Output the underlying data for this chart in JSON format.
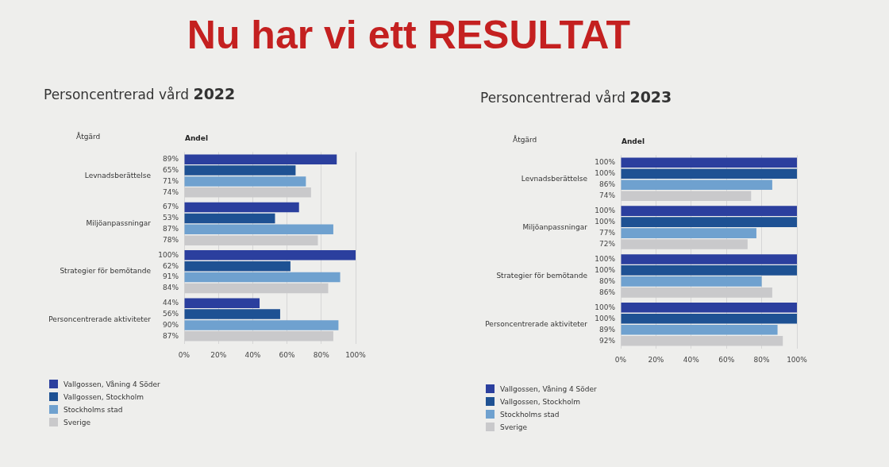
{
  "chart_data": [
    {
      "type": "bar",
      "orientation": "horizontal",
      "title": "Personcentrerad vård 2022",
      "annotations": [
        "Nu har vi ett RESULTAT"
      ],
      "ylabel": "Åtgärd",
      "xlabel": "Andel",
      "categories": [
        "Levnadsberättelse",
        "Miljöanpassningar",
        "Strategier för bemötande",
        "Personcentrerade aktiviteter"
      ],
      "series": [
        {
          "name": "Vallgossen, Våning 4 Söder",
          "color": "#2b3f9e",
          "values": [
            89,
            67,
            100,
            44
          ],
          "value_labels": [
            "89%",
            "67%",
            "100%",
            "44%"
          ]
        },
        {
          "name": "Vallgossen, Stockholm",
          "color": "#1e5193",
          "values": [
            65,
            53,
            62,
            56
          ],
          "value_labels": [
            "65%",
            "53%",
            "62%",
            "56%"
          ]
        },
        {
          "name": "Stockholms stad",
          "color": "#6fa1cf",
          "values": [
            71,
            87,
            91,
            90
          ],
          "value_labels": [
            "71%",
            "87%",
            "91%",
            "90%"
          ]
        },
        {
          "name": "Sverige",
          "color": "#c9c9cb",
          "values": [
            74,
            78,
            84,
            87
          ],
          "value_labels": [
            "74%",
            "78%",
            "84%",
            "87%"
          ]
        }
      ],
      "xlim": [
        0,
        100
      ],
      "xticks": [
        {
          "value": 0,
          "label": "0%"
        },
        {
          "value": 20,
          "label": "20%"
        },
        {
          "value": 40,
          "label": "40%"
        },
        {
          "value": 60,
          "label": "60%"
        },
        {
          "value": 80,
          "label": "80%"
        },
        {
          "value": 100,
          "label": "100%"
        }
      ],
      "grid": "x",
      "legend": "bottom left"
    },
    {
      "type": "bar",
      "orientation": "horizontal",
      "title": "Personcentrerad vård 2023",
      "ylabel": "Åtgärd",
      "xlabel": "Andel",
      "categories": [
        "Levnadsberättelse",
        "Miljöanpassningar",
        "Strategier för bemötande",
        "Personcentrerade aktiviteter"
      ],
      "series": [
        {
          "name": "Vallgossen, Våning 4 Söder",
          "color": "#2b3f9e",
          "values": [
            100,
            100,
            100,
            100
          ],
          "value_labels": [
            "100%",
            "100%",
            "100%",
            "100%"
          ]
        },
        {
          "name": "Vallgossen, Stockholm",
          "color": "#1e5193",
          "values": [
            100,
            100,
            100,
            100
          ],
          "value_labels": [
            "100%",
            "100%",
            "100%",
            "100%"
          ]
        },
        {
          "name": "Stockholms stad",
          "color": "#6fa1cf",
          "values": [
            86,
            77,
            80,
            89
          ],
          "value_labels": [
            "86%",
            "77%",
            "80%",
            "89%"
          ]
        },
        {
          "name": "Sverige",
          "color": "#c9c9cb",
          "values": [
            74,
            72,
            86,
            92
          ],
          "value_labels": [
            "74%",
            "72%",
            "86%",
            "92%"
          ]
        }
      ],
      "xlim": [
        0,
        100
      ],
      "xticks": [
        {
          "value": 0,
          "label": "0%"
        },
        {
          "value": 20,
          "label": "20%"
        },
        {
          "value": 40,
          "label": "40%"
        },
        {
          "value": 60,
          "label": "60%"
        },
        {
          "value": 80,
          "label": "80%"
        },
        {
          "value": 100,
          "label": "100%"
        }
      ],
      "grid": "x",
      "legend": "bottom left"
    }
  ]
}
